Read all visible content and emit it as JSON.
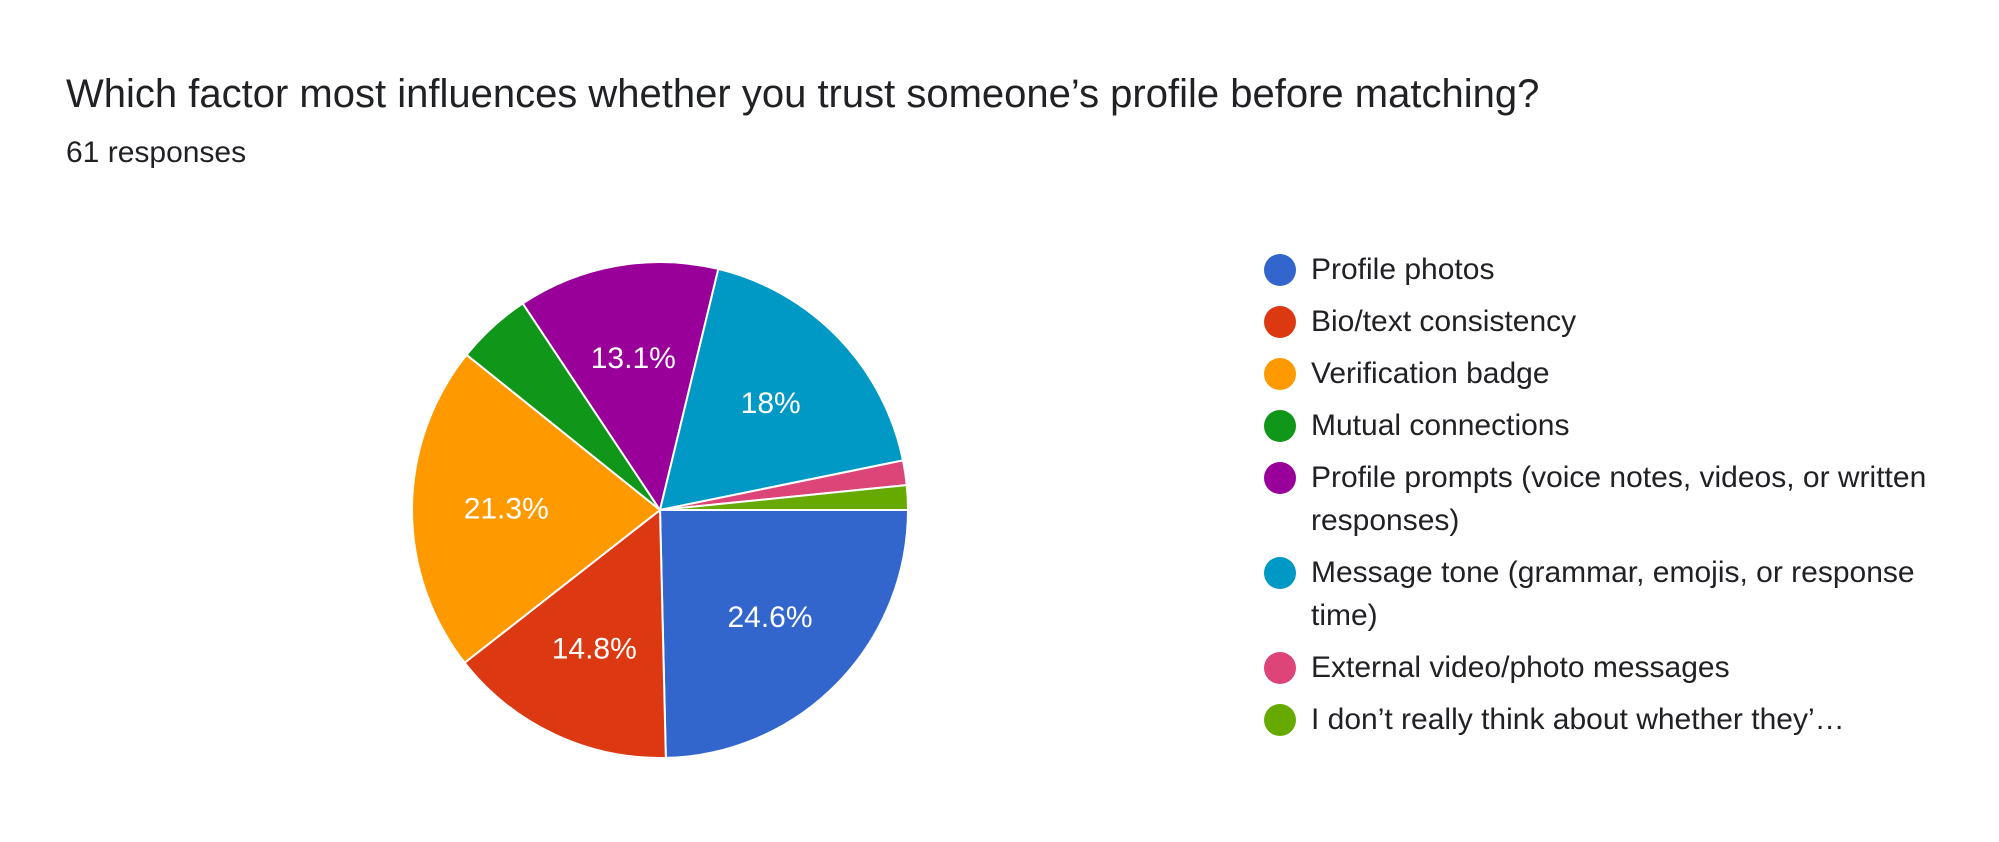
{
  "title": "Which factor most influences whether you trust someone’s profile before matching?",
  "subtitle": "61 responses",
  "chart_data": {
    "type": "pie",
    "title": "Which factor most influences whether you trust someone’s profile before matching?",
    "total_responses": 61,
    "legend_position": "right",
    "start_angle": "3 o'clock, clockwise",
    "slices": [
      {
        "label": "Profile photos",
        "percent": 24.6,
        "count": 15,
        "color": "#3366cc",
        "data_label": "24.6%"
      },
      {
        "label": "Bio/text consistency",
        "percent": 14.8,
        "count": 9,
        "color": "#dc3912",
        "data_label": "14.8%"
      },
      {
        "label": "Verification badge",
        "percent": 21.3,
        "count": 13,
        "color": "#ff9900",
        "data_label": "21.3%"
      },
      {
        "label": "Mutual connections",
        "percent": 4.9,
        "count": 3,
        "color": "#109618",
        "data_label": ""
      },
      {
        "label": "Profile prompts (voice notes, videos, or written responses)",
        "percent": 13.1,
        "count": 8,
        "color": "#990099",
        "data_label": "13.1%"
      },
      {
        "label": "Message tone (grammar, emojis, or response time)",
        "percent": 18,
        "count": 11,
        "color": "#0099c6",
        "data_label": "18%"
      },
      {
        "label": "External video/photo messages",
        "percent": 1.6,
        "count": 1,
        "color": "#dd4477",
        "data_label": ""
      },
      {
        "label": "I don’t really think about whether they’…",
        "percent": 1.6,
        "count": 1,
        "color": "#66aa00",
        "data_label": ""
      }
    ]
  }
}
